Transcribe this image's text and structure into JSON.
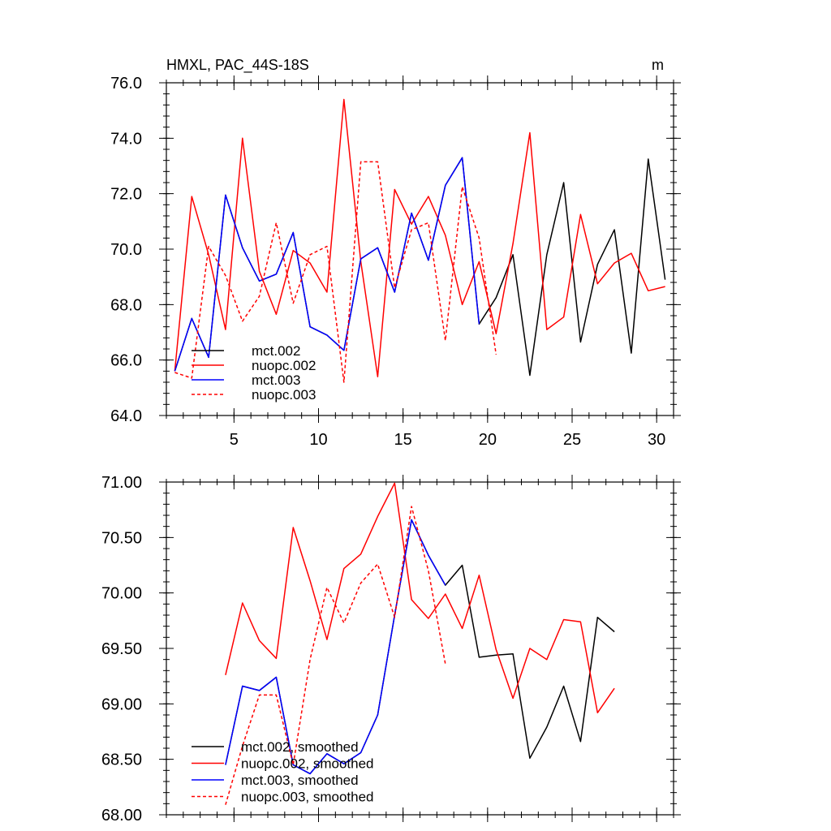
{
  "chart_data": [
    {
      "type": "line",
      "title": "HMXL, PAC_44S-18S",
      "units": "m",
      "xlabel": "",
      "ylabel": "",
      "xlim": [
        1,
        31
      ],
      "ylim": [
        64.0,
        76.0
      ],
      "xticks": [
        5,
        10,
        15,
        20,
        25,
        30
      ],
      "xtick_labels": [
        "5",
        "10",
        "15",
        "20",
        "25",
        "30"
      ],
      "yticks": [
        64.0,
        66.0,
        68.0,
        70.0,
        72.0,
        74.0,
        76.0
      ],
      "ytick_labels": [
        "64.0",
        "66.0",
        "68.0",
        "70.0",
        "72.0",
        "74.0",
        "76.0"
      ],
      "legend_position": "bottom-left",
      "series": [
        {
          "name": "mct.002",
          "color": "#000000",
          "dash": "solid",
          "x": [
            1.5,
            2.5,
            3.5,
            4.5,
            5.5,
            6.5,
            7.5,
            8.5,
            9.5,
            10.5,
            11.5,
            12.5,
            13.5,
            14.5,
            15.5,
            16.5,
            17.5,
            18.5,
            19.5,
            20.5,
            21.5,
            22.5,
            23.5,
            24.5,
            25.5,
            26.5,
            27.5,
            28.5,
            29.5,
            30.5
          ],
          "values": [
            65.6,
            67.5,
            66.1,
            71.95,
            70.05,
            68.85,
            69.1,
            70.6,
            67.2,
            66.9,
            66.35,
            69.65,
            70.05,
            68.45,
            71.3,
            69.6,
            72.3,
            73.3,
            67.3,
            68.25,
            69.8,
            65.45,
            69.8,
            72.4,
            66.65,
            69.45,
            70.7,
            66.25,
            73.25,
            68.9
          ]
        },
        {
          "name": "nuopc.002",
          "color": "#ff0000",
          "dash": "solid",
          "x": [
            1.5,
            2.5,
            3.5,
            4.5,
            5.5,
            6.5,
            7.5,
            8.5,
            9.5,
            10.5,
            11.5,
            12.5,
            13.5,
            14.5,
            15.5,
            16.5,
            17.5,
            18.5,
            19.5,
            20.5,
            21.5,
            22.5,
            23.5,
            24.5,
            25.5,
            26.5,
            27.5,
            28.5,
            29.5,
            30.5
          ],
          "values": [
            65.6,
            71.9,
            69.8,
            67.1,
            74.0,
            69.2,
            67.65,
            69.95,
            69.5,
            68.45,
            75.4,
            69.55,
            65.4,
            72.15,
            70.9,
            71.9,
            70.5,
            68.0,
            69.55,
            66.95,
            70.2,
            74.2,
            67.1,
            67.55,
            71.25,
            68.75,
            69.5,
            69.85,
            68.5,
            68.65
          ]
        },
        {
          "name": "mct.003",
          "color": "#0000ff",
          "dash": "solid",
          "x": [
            1.5,
            2.5,
            3.5,
            4.5,
            5.5,
            6.5,
            7.5,
            8.5,
            9.5,
            10.5,
            11.5,
            12.5,
            13.5,
            14.5,
            15.5,
            16.5,
            17.5,
            18.5,
            19.5
          ],
          "values": [
            65.6,
            67.5,
            66.1,
            71.95,
            70.05,
            68.85,
            69.1,
            70.6,
            67.2,
            66.9,
            66.35,
            69.65,
            70.05,
            68.45,
            71.3,
            69.6,
            72.3,
            73.3,
            67.3
          ]
        },
        {
          "name": "nuopc.003",
          "color": "#ff0000",
          "dash": "dashed",
          "x": [
            1.5,
            2.5,
            3.5,
            4.5,
            5.5,
            6.5,
            7.5,
            8.5,
            9.5,
            10.5,
            11.5,
            12.5,
            13.5,
            14.5,
            15.5,
            16.5,
            17.5,
            18.5,
            19.5,
            20.5
          ],
          "values": [
            65.55,
            65.35,
            70.1,
            69.05,
            67.4,
            68.3,
            70.95,
            68.05,
            69.8,
            70.1,
            65.2,
            73.15,
            73.15,
            68.6,
            70.7,
            70.95,
            66.7,
            72.25,
            70.4,
            66.2
          ]
        }
      ]
    },
    {
      "type": "line",
      "title": "",
      "units": "",
      "xlabel": "",
      "ylabel": "",
      "xlim": [
        1,
        31
      ],
      "ylim": [
        68.0,
        71.0
      ],
      "xticks": [
        5,
        10,
        15,
        20,
        25,
        30
      ],
      "xtick_labels": [],
      "yticks": [
        68.0,
        68.5,
        69.0,
        69.5,
        70.0,
        70.5,
        71.0
      ],
      "ytick_labels": [
        "68.00",
        "68.50",
        "69.00",
        "69.50",
        "70.00",
        "70.50",
        "71.00"
      ],
      "legend_position": "bottom-left",
      "series": [
        {
          "name": "mct.002, smoothed",
          "color": "#000000",
          "dash": "solid",
          "x": [
            4.5,
            5.5,
            6.5,
            7.5,
            8.5,
            9.5,
            10.5,
            11.5,
            12.5,
            13.5,
            14.5,
            15.5,
            16.5,
            17.5,
            18.5,
            19.5,
            20.5,
            21.5,
            22.5,
            23.5,
            24.5,
            25.5,
            26.5,
            27.5
          ],
          "values": [
            68.45,
            69.16,
            69.12,
            69.24,
            68.45,
            68.37,
            68.55,
            68.46,
            68.56,
            68.9,
            69.8,
            70.66,
            70.34,
            70.07,
            70.25,
            69.42,
            69.44,
            69.45,
            68.51,
            68.79,
            69.16,
            68.66,
            69.78,
            69.65
          ]
        },
        {
          "name": "nuopc.002, smoothed",
          "color": "#ff0000",
          "dash": "solid",
          "x": [
            4.5,
            5.5,
            6.5,
            7.5,
            8.5,
            9.5,
            10.5,
            11.5,
            12.5,
            13.5,
            14.5,
            15.5,
            16.5,
            17.5,
            18.5,
            19.5,
            20.5,
            21.5,
            22.5,
            23.5,
            24.5,
            25.5,
            26.5,
            27.5
          ],
          "values": [
            69.26,
            69.91,
            69.57,
            69.41,
            70.59,
            70.11,
            69.58,
            70.22,
            70.35,
            70.69,
            70.99,
            69.94,
            69.77,
            69.99,
            69.68,
            70.16,
            69.49,
            69.05,
            69.5,
            69.4,
            69.76,
            69.74,
            68.92,
            69.14
          ]
        },
        {
          "name": "mct.003, smoothed",
          "color": "#0000ff",
          "dash": "solid",
          "x": [
            4.5,
            5.5,
            6.5,
            7.5,
            8.5,
            9.5,
            10.5,
            11.5,
            12.5,
            13.5,
            14.5,
            15.5,
            16.5,
            17.5
          ],
          "values": [
            68.45,
            69.16,
            69.12,
            69.24,
            68.45,
            68.37,
            68.55,
            68.46,
            68.56,
            68.9,
            69.8,
            70.66,
            70.34,
            70.07
          ]
        },
        {
          "name": "nuopc.003, smoothed",
          "color": "#ff0000",
          "dash": "dashed",
          "x": [
            4.5,
            5.5,
            6.5,
            7.5,
            8.5,
            9.5,
            10.5,
            11.5,
            12.5,
            13.5,
            14.5,
            15.5,
            16.5,
            17.5
          ],
          "values": [
            68.09,
            68.62,
            69.08,
            69.08,
            68.45,
            69.4,
            70.05,
            69.73,
            70.09,
            70.26,
            69.78,
            70.78,
            70.2,
            69.36
          ]
        }
      ]
    }
  ]
}
